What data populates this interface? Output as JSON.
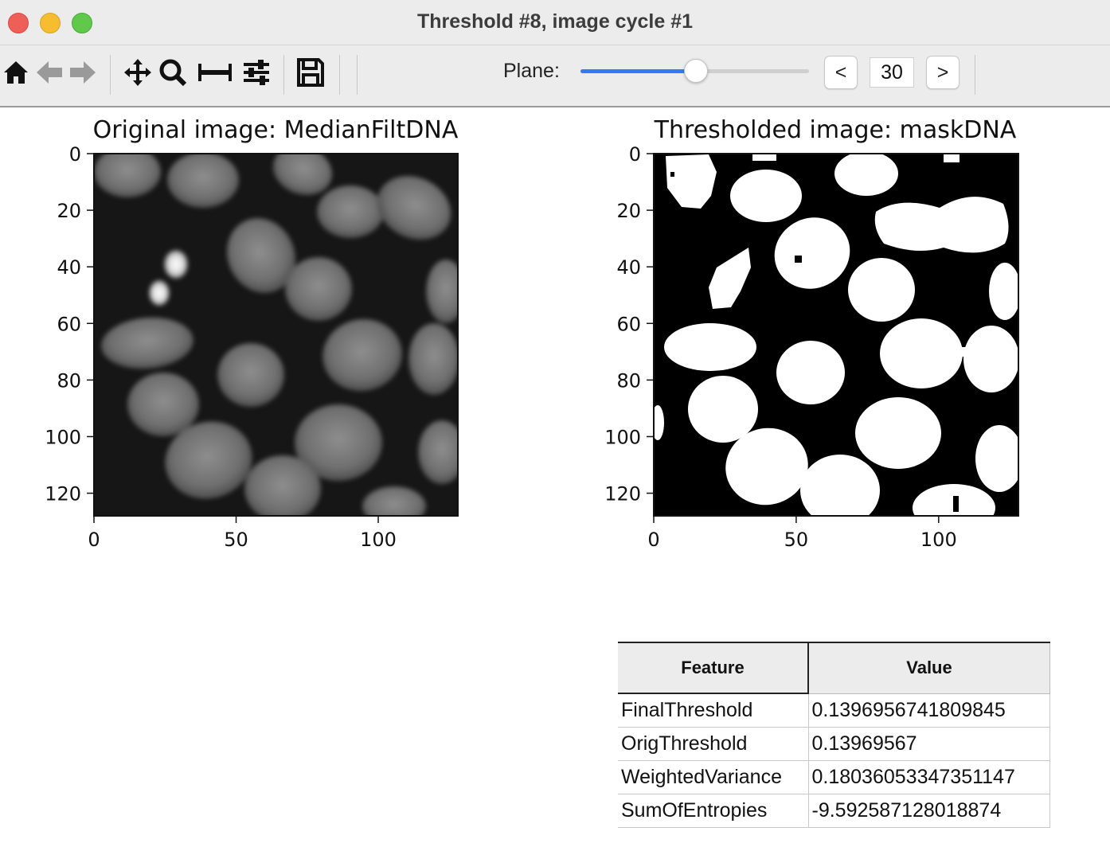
{
  "window": {
    "title": "Threshold #8, image cycle #1"
  },
  "toolbar": {
    "icons": [
      "home-icon",
      "back-arrow-icon",
      "forward-arrow-icon",
      "pan-icon",
      "zoom-icon",
      "subplots-icon",
      "configure-icon",
      "save-icon"
    ],
    "plane_label": "Plane:",
    "plane_value": "30",
    "plane_slider_fraction": 0.5,
    "prev_label": "<",
    "next_label": ">",
    "accent_color": "#2f7cf6"
  },
  "plots": [
    {
      "title": "Original image: MedianFiltDNA",
      "type": "grayscale-image",
      "x_ticks": [
        "0",
        "50",
        "100"
      ],
      "y_ticks": [
        "0",
        "20",
        "40",
        "60",
        "80",
        "100",
        "120"
      ]
    },
    {
      "title": "Thresholded image: maskDNA",
      "type": "binary-mask",
      "x_ticks": [
        "0",
        "50",
        "100"
      ],
      "y_ticks": [
        "0",
        "20",
        "40",
        "60",
        "80",
        "100",
        "120"
      ]
    }
  ],
  "table": {
    "headers": [
      "Feature",
      "Value"
    ],
    "rows": [
      [
        "FinalThreshold",
        "0.1396956741809845"
      ],
      [
        "OrigThreshold",
        "0.13969567"
      ],
      [
        "WeightedVariance",
        "0.18036053347351147"
      ],
      [
        "SumOfEntropies",
        "-9.592587128018874"
      ]
    ]
  }
}
